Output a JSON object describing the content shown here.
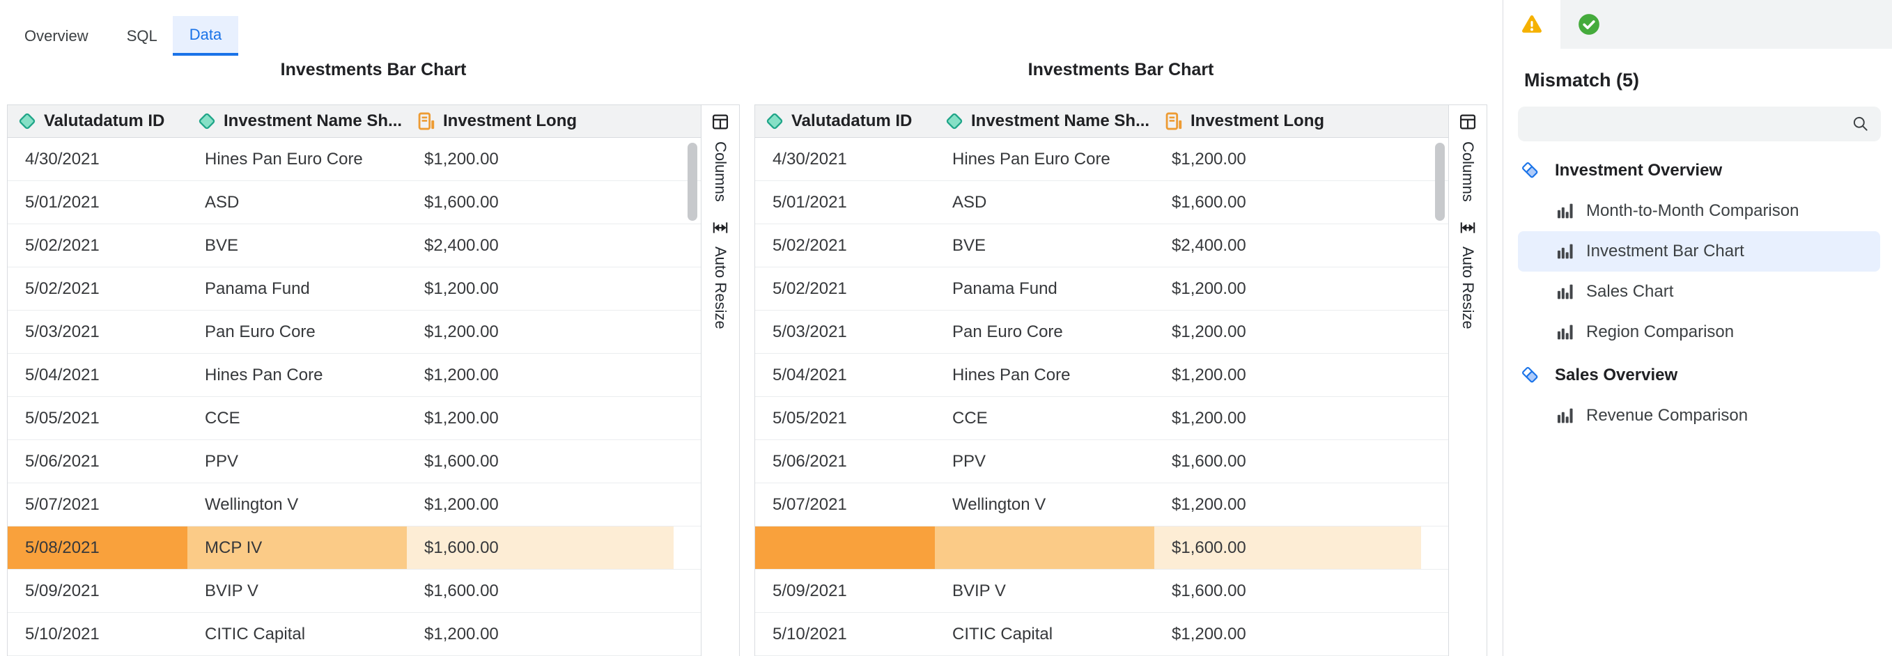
{
  "header_tabs": [
    {
      "label": "Overview",
      "active": false
    },
    {
      "label": "SQL",
      "active": false
    },
    {
      "label": "Data",
      "active": true
    }
  ],
  "side_panel": {
    "columns_label": "Columns",
    "auto_resize_label": "Auto Resize"
  },
  "grids": [
    {
      "title": "Investments Bar Chart",
      "columns": [
        {
          "label": "Valutadatum ID",
          "icon": "dimension-diamond-icon"
        },
        {
          "label": "Investment Name Sh...",
          "icon": "dimension-diamond-icon"
        },
        {
          "label": "Investment Long",
          "icon": "measure-icon"
        }
      ],
      "rows": [
        [
          "4/30/2021",
          "Hines Pan Euro Core",
          "$1,200.00"
        ],
        [
          "5/01/2021",
          "ASD",
          "$1,600.00"
        ],
        [
          "5/02/2021",
          "BVE",
          "$2,400.00"
        ],
        [
          "5/02/2021",
          "Panama Fund",
          "$1,200.00"
        ],
        [
          "5/03/2021",
          "Pan Euro Core",
          "$1,200.00"
        ],
        [
          "5/04/2021",
          "Hines Pan Core",
          "$1,200.00"
        ],
        [
          "5/05/2021",
          "CCE",
          "$1,200.00"
        ],
        [
          "5/06/2021",
          "PPV",
          "$1,600.00"
        ],
        [
          "5/07/2021",
          "Wellington V",
          "$1,200.00"
        ],
        [
          "5/08/2021",
          "MCP IV",
          "$1,600.00"
        ],
        [
          "5/09/2021",
          "BVIP V",
          "$1,600.00"
        ],
        [
          "5/10/2021",
          "CITIC Capital",
          "$1,200.00"
        ]
      ],
      "mismatch_row_index": 9
    },
    {
      "title": "Investments Bar Chart",
      "columns": [
        {
          "label": "Valutadatum ID",
          "icon": "dimension-diamond-icon"
        },
        {
          "label": "Investment Name Sh...",
          "icon": "dimension-diamond-icon"
        },
        {
          "label": "Investment Long",
          "icon": "measure-icon"
        }
      ],
      "rows": [
        [
          "4/30/2021",
          "Hines Pan Euro Core",
          "$1,200.00"
        ],
        [
          "5/01/2021",
          "ASD",
          "$1,600.00"
        ],
        [
          "5/02/2021",
          "BVE",
          "$2,400.00"
        ],
        [
          "5/02/2021",
          "Panama Fund",
          "$1,200.00"
        ],
        [
          "5/03/2021",
          "Pan Euro Core",
          "$1,200.00"
        ],
        [
          "5/04/2021",
          "Hines Pan Core",
          "$1,200.00"
        ],
        [
          "5/05/2021",
          "CCE",
          "$1,200.00"
        ],
        [
          "5/06/2021",
          "PPV",
          "$1,600.00"
        ],
        [
          "5/07/2021",
          "Wellington V",
          "$1,200.00"
        ],
        [
          "",
          "",
          "$1,600.00"
        ],
        [
          "5/09/2021",
          "BVIP V",
          "$1,600.00"
        ],
        [
          "5/10/2021",
          "CITIC Capital",
          "$1,200.00"
        ]
      ],
      "mismatch_row_index": 9
    }
  ],
  "sidebar": {
    "tabs": [
      {
        "icon": "warning-icon",
        "active": true
      },
      {
        "icon": "success-icon",
        "active": false
      }
    ],
    "heading": "Mismatch (5)",
    "search": {
      "value": "",
      "placeholder": ""
    },
    "tree": [
      {
        "kind": "section",
        "label": "Investment Overview",
        "icon": "looks-icon"
      },
      {
        "kind": "item",
        "label": "Month-to-Month Comparison",
        "icon": "bar-chart-icon",
        "selected": false
      },
      {
        "kind": "item",
        "label": "Investment Bar Chart",
        "icon": "bar-chart-icon",
        "selected": true
      },
      {
        "kind": "item",
        "label": "Sales Chart",
        "icon": "bar-chart-icon",
        "selected": false
      },
      {
        "kind": "item",
        "label": "Region Comparison",
        "icon": "bar-chart-icon",
        "selected": false
      },
      {
        "kind": "section",
        "label": "Sales Overview",
        "icon": "looks-icon"
      },
      {
        "kind": "item",
        "label": "Revenue Comparison",
        "icon": "bar-chart-icon",
        "selected": false
      }
    ]
  },
  "colors": {
    "accent_blue": "#1A73E8",
    "accent_blue_bg": "#E8F0FE",
    "mismatch_cell_strong": "#F9A13C",
    "mismatch_cell_medium": "#FBCB87",
    "mismatch_cell_light": "#FDEDD5",
    "dimension_teal_fill": "#86E0C6",
    "dimension_teal_stroke": "#1FA588",
    "measure_orange": "#ED9B33",
    "warning_amber": "#F5B100",
    "success_green": "#45AB3C",
    "header_bg": "#F1F2F3",
    "border": "#D9DCE0"
  }
}
